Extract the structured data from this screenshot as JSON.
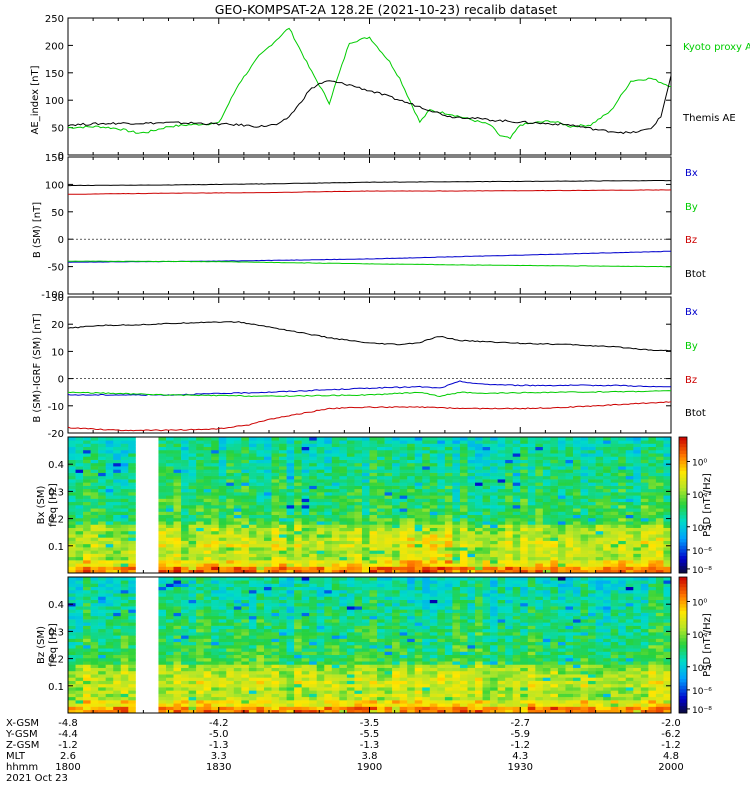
{
  "title": "GEO-KOMPSAT-2A 128.2E (2021-10-23) recalib dataset",
  "chart_data": [
    {
      "type": "line",
      "ylabel": "AE_index [nT]",
      "ylim": [
        0,
        250
      ],
      "yticks": [
        0,
        50,
        100,
        150,
        200,
        250
      ],
      "x_minutes_range": [
        0,
        120
      ],
      "series": [
        {
          "name": "Kyoto proxy AE",
          "color": "#00cc00",
          "x": [
            0,
            6,
            10,
            14,
            16,
            20,
            24,
            30,
            34,
            38,
            44,
            48,
            52,
            56,
            60,
            64,
            66,
            68,
            70,
            72,
            74,
            76,
            80,
            84,
            86,
            88,
            90,
            94,
            96,
            98,
            100,
            104,
            108,
            112,
            116,
            120
          ],
          "y": [
            50,
            52,
            48,
            40,
            42,
            52,
            55,
            58,
            130,
            180,
            232,
            160,
            95,
            205,
            215,
            170,
            140,
            100,
            60,
            82,
            78,
            75,
            65,
            55,
            35,
            30,
            55,
            60,
            62,
            58,
            52,
            55,
            80,
            135,
            140,
            125
          ]
        },
        {
          "name": "Themis AE",
          "color": "#000000",
          "x": [
            0,
            6,
            10,
            16,
            20,
            26,
            34,
            38,
            42,
            44,
            46,
            48,
            50,
            52,
            56,
            62,
            70,
            76,
            80,
            84,
            90,
            100,
            106,
            112,
            116,
            118,
            120
          ],
          "y": [
            55,
            57,
            58,
            58,
            59,
            58,
            55,
            52,
            56,
            70,
            92,
            118,
            130,
            135,
            128,
            112,
            88,
            70,
            68,
            64,
            60,
            55,
            45,
            40,
            48,
            70,
            145
          ]
        }
      ],
      "legend": [
        "Kyoto proxy AE",
        "Themis AE"
      ]
    },
    {
      "type": "line",
      "ylabel": "B (SM) [nT]",
      "ylim": [
        -100,
        150
      ],
      "yticks": [
        -100,
        -50,
        0,
        50,
        100,
        150
      ],
      "x_minutes_range": [
        0,
        120
      ],
      "series": [
        {
          "name": "Bx",
          "color": "#0000cc",
          "x": [
            0,
            30,
            60,
            90,
            120
          ],
          "y": [
            -42,
            -40,
            -36,
            -29,
            -22
          ]
        },
        {
          "name": "By",
          "color": "#00cc00",
          "x": [
            0,
            30,
            60,
            90,
            120
          ],
          "y": [
            -40,
            -41,
            -45,
            -48,
            -50
          ]
        },
        {
          "name": "Bz",
          "color": "#cc0000",
          "x": [
            0,
            20,
            40,
            60,
            80,
            100,
            120
          ],
          "y": [
            82,
            84,
            85,
            88,
            88,
            89,
            90
          ]
        },
        {
          "name": "Btot",
          "color": "#000000",
          "x": [
            0,
            20,
            40,
            60,
            80,
            100,
            120
          ],
          "y": [
            98,
            99,
            101,
            104,
            105,
            106,
            107
          ]
        }
      ],
      "legend": [
        "Bx",
        "By",
        "Bz",
        "Btot"
      ]
    },
    {
      "type": "line",
      "ylabel": "B (SM)-IGRF (SM) [nT]",
      "ylim": [
        -20,
        30
      ],
      "yticks": [
        -20,
        -10,
        0,
        10,
        20,
        30
      ],
      "x_minutes_range": [
        0,
        120
      ],
      "series": [
        {
          "name": "Bx",
          "color": "#0000cc",
          "x": [
            0,
            20,
            40,
            60,
            70,
            74,
            78,
            82,
            90,
            100,
            110,
            116,
            120
          ],
          "y": [
            -6,
            -6,
            -5,
            -3.5,
            -3,
            -3.5,
            -1,
            -2,
            -2.5,
            -2.5,
            -2.5,
            -3,
            -3
          ]
        },
        {
          "name": "By",
          "color": "#00cc00",
          "x": [
            0,
            20,
            40,
            60,
            70,
            74,
            78,
            82,
            90,
            100,
            110,
            120
          ],
          "y": [
            -5,
            -6,
            -6.5,
            -6,
            -5,
            -6.5,
            -5,
            -5.5,
            -5.2,
            -5,
            -4.8,
            -4.5
          ]
        },
        {
          "name": "Bz",
          "color": "#cc0000",
          "x": [
            0,
            10,
            20,
            30,
            36,
            40,
            46,
            52,
            60,
            70,
            80,
            90,
            100,
            110,
            120
          ],
          "y": [
            -18,
            -19,
            -19,
            -18.5,
            -17,
            -15,
            -13,
            -11,
            -10.5,
            -10.5,
            -11,
            -11,
            -10.5,
            -9.5,
            -8.5
          ]
        },
        {
          "name": "Btot",
          "color": "#000000",
          "x": [
            0,
            6,
            14,
            20,
            28,
            34,
            40,
            46,
            52,
            60,
            66,
            70,
            72,
            74,
            78,
            84,
            90,
            100,
            110,
            116,
            120
          ],
          "y": [
            18.5,
            19.5,
            19.8,
            20.2,
            20.8,
            20.8,
            19,
            17,
            15,
            13,
            12.5,
            13.2,
            14.5,
            15.5,
            14,
            13.5,
            13,
            12.5,
            11.5,
            10.5,
            10.3
          ]
        }
      ],
      "legend": [
        "Bx",
        "By",
        "Bz",
        "Btot"
      ]
    },
    {
      "type": "heatmap",
      "ylabel": "Bx (SM)",
      "ylabel2": "freq [Hz]",
      "ylim": [
        0,
        0.5
      ],
      "yticks": [
        0.1,
        0.2,
        0.3,
        0.4
      ],
      "colorbar_label": "PSD [nT²/Hz]",
      "colorbar_ticks": [
        "10⁰",
        "10⁻²",
        "10⁻⁴",
        "10⁻⁶",
        "10⁻⁸"
      ],
      "data_gap_minutes": [
        14.5,
        17.5
      ]
    },
    {
      "type": "heatmap",
      "ylabel": "Bz (SM)",
      "ylabel2": "freq [Hz]",
      "ylim": [
        0,
        0.5
      ],
      "yticks": [
        0.1,
        0.2,
        0.3,
        0.4
      ],
      "colorbar_label": "PSD [nT²/Hz]",
      "colorbar_ticks": [
        "10⁰",
        "10⁻²",
        "10⁻⁴",
        "10⁻⁶",
        "10⁻⁸"
      ],
      "data_gap_minutes": [
        14.5,
        17.5
      ]
    }
  ],
  "xaxis": {
    "row_labels": [
      "X-GSM",
      "Y-GSM",
      "Z-GSM",
      "MLT",
      "hhmm",
      "2021 Oct 23"
    ],
    "columns": [
      {
        "values": [
          "-4.8",
          "-4.4",
          "-1.2",
          "2.6",
          "1800"
        ]
      },
      {
        "values": [
          "-4.2",
          "-5.0",
          "-1.3",
          "3.3",
          "1830"
        ]
      },
      {
        "values": [
          "-3.5",
          "-5.5",
          "-1.3",
          "3.8",
          "1900"
        ]
      },
      {
        "values": [
          "-2.7",
          "-5.9",
          "-1.2",
          "4.3",
          "1930"
        ]
      },
      {
        "values": [
          "-2.0",
          "-6.2",
          "-1.2",
          "4.8",
          "2000"
        ]
      }
    ]
  }
}
